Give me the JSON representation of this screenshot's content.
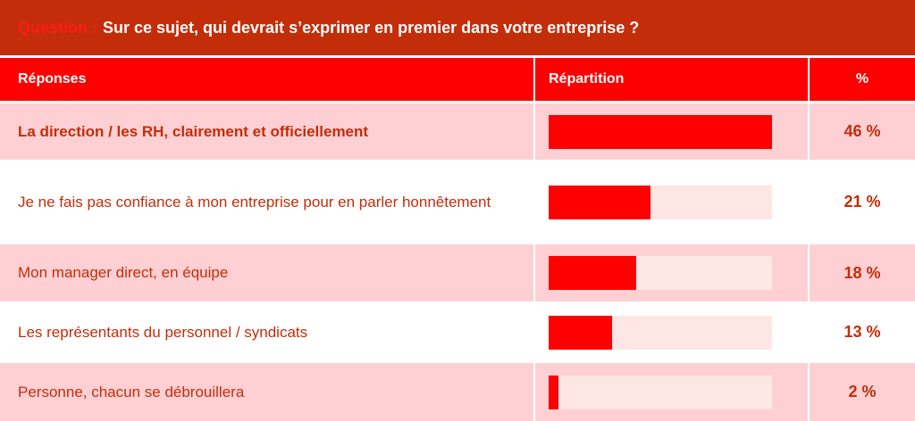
{
  "question": {
    "label": "Question :",
    "text": "Sur ce sujet, qui devrait s’exprimer en premier dans votre entreprise ?"
  },
  "header": {
    "col_responses": "Réponses",
    "col_distribution": "Répartition",
    "col_percent": "%"
  },
  "colors": {
    "header_bar": "#c42d0a",
    "table_header": "#ff0000",
    "bar_fill": "#ff0000",
    "bar_track": "#fde6e4",
    "row_alt": "#ffd0d3",
    "text": "#c42d0a"
  },
  "chart_data": {
    "type": "bar",
    "orientation": "horizontal",
    "categories": [
      "La direction / les RH, clairement et officiellement",
      "Je ne fais pas confiance à mon entreprise pour en parler honnêtement",
      "Mon manager direct, en équipe",
      "Les représentants du personnel / syndicats",
      "Personne, chacun se débrouillera"
    ],
    "values": [
      46,
      21,
      18,
      13,
      2
    ],
    "value_labels": [
      "46 %",
      "21 %",
      "18 %",
      "13 %",
      "2 %"
    ],
    "xlim": [
      0,
      46
    ],
    "grid": false,
    "legend": "none"
  }
}
